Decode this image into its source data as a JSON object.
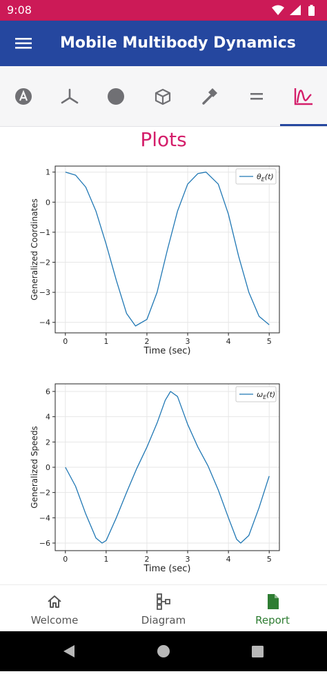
{
  "status_bar": {
    "time": "9:08"
  },
  "app_bar": {
    "title": "Mobile Multibody Dynamics"
  },
  "tabs": [
    {
      "name": "tab-accelerometer",
      "icon": "circle-a-icon"
    },
    {
      "name": "tab-frames",
      "icon": "axes-icon"
    },
    {
      "name": "tab-bodies",
      "icon": "filled-circle-icon"
    },
    {
      "name": "tab-inertia",
      "icon": "cube-icon"
    },
    {
      "name": "tab-forces",
      "icon": "hammer-icon"
    },
    {
      "name": "tab-equations",
      "icon": "equals-icon"
    },
    {
      "name": "tab-plots",
      "icon": "plot-curve-icon",
      "selected": true
    }
  ],
  "page": {
    "heading": "Plots"
  },
  "colors": {
    "status_bar": "#cc1a57",
    "app_bar": "#25479f",
    "accent": "#d41e6a",
    "series": "#1f77b4",
    "nav_active": "#2e7d32"
  },
  "chart_data": [
    {
      "type": "line",
      "title": "",
      "xlabel": "Time (sec)",
      "ylabel": "Generalized Coordinates",
      "xlim": [
        -0.25,
        5.25
      ],
      "ylim": [
        -4.35,
        1.2
      ],
      "xticks": [
        0,
        1,
        2,
        3,
        4,
        5
      ],
      "yticks": [
        1,
        0,
        -1,
        -2,
        -3,
        -4
      ],
      "ytick_labels": [
        "1",
        "0",
        "−1",
        "−2",
        "−3",
        "−4"
      ],
      "grid": true,
      "legend_position": "top-right",
      "series": [
        {
          "name": "θE(t)",
          "legend_main": "θ",
          "legend_sub": "E",
          "legend_tail": "(t)",
          "x": [
            0,
            0.25,
            0.5,
            0.75,
            1.0,
            1.25,
            1.5,
            1.72,
            2.0,
            2.25,
            2.5,
            2.75,
            3.0,
            3.25,
            3.45,
            3.75,
            4.0,
            4.25,
            4.5,
            4.75,
            5.0
          ],
          "y": [
            1.0,
            0.9,
            0.5,
            -0.3,
            -1.4,
            -2.6,
            -3.7,
            -4.12,
            -3.9,
            -3.0,
            -1.6,
            -0.3,
            0.6,
            0.95,
            1.0,
            0.6,
            -0.4,
            -1.8,
            -3.0,
            -3.8,
            -4.08
          ]
        }
      ]
    },
    {
      "type": "line",
      "title": "",
      "xlabel": "Time (sec)",
      "ylabel": "Generalized Speeds",
      "xlim": [
        -0.25,
        5.25
      ],
      "ylim": [
        -6.6,
        6.6
      ],
      "xticks": [
        0,
        1,
        2,
        3,
        4,
        5
      ],
      "yticks": [
        6,
        4,
        2,
        0,
        -2,
        -4,
        -6
      ],
      "ytick_labels": [
        "6",
        "4",
        "2",
        "0",
        "−2",
        "−4",
        "−6"
      ],
      "grid": true,
      "legend_position": "top-right",
      "series": [
        {
          "name": "ωE(t)",
          "legend_main": "ω",
          "legend_sub": "E",
          "legend_tail": "(t)",
          "x": [
            0,
            0.25,
            0.5,
            0.75,
            0.9,
            1.0,
            1.25,
            1.5,
            1.75,
            2.0,
            2.25,
            2.45,
            2.58,
            2.75,
            3.0,
            3.25,
            3.5,
            3.75,
            4.0,
            4.2,
            4.3,
            4.5,
            4.75,
            5.0
          ],
          "y": [
            0,
            -1.5,
            -3.7,
            -5.6,
            -6.0,
            -5.8,
            -4.0,
            -2.0,
            -0.1,
            1.6,
            3.5,
            5.3,
            6.0,
            5.6,
            3.4,
            1.6,
            0.1,
            -1.8,
            -4.0,
            -5.7,
            -6.0,
            -5.4,
            -3.2,
            -0.7
          ]
        }
      ]
    }
  ],
  "bottom_nav": [
    {
      "label": "Welcome",
      "icon": "home-icon"
    },
    {
      "label": "Diagram",
      "icon": "diagram-icon"
    },
    {
      "label": "Report",
      "icon": "report-icon",
      "active": true
    }
  ]
}
